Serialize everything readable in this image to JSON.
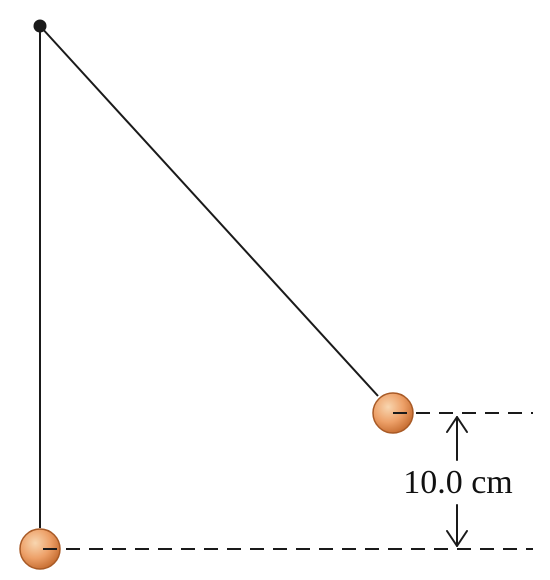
{
  "figure": {
    "height_label": "10.0 cm",
    "colors": {
      "ink": "#1a1a1a",
      "ball_fill_light": "#f8d6b0",
      "ball_fill_mid": "#eda068",
      "ball_fill_dark": "#c46a2e",
      "ball_outline": "#a85a26"
    },
    "elements": {
      "pivot": "pivot-point",
      "hanging_string": "vertical-string",
      "swung_string": "angled-string",
      "bob_rest": "bob-at-rest",
      "bob_raised": "bob-raised",
      "reference_lines": "dashed-reference-lines",
      "height_arrow": "height-dimension-arrow"
    }
  }
}
